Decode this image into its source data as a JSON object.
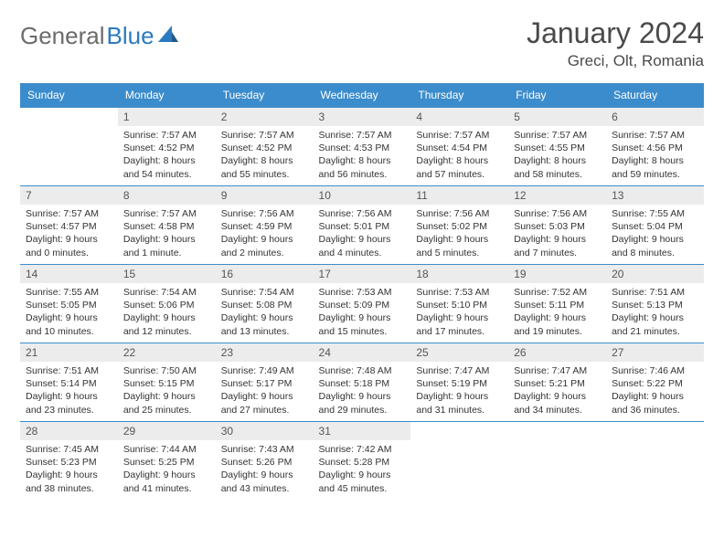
{
  "logo": {
    "text_gray": "General",
    "text_blue": "Blue"
  },
  "title": "January 2024",
  "location": "Greci, Olt, Romania",
  "colors": {
    "header_bg": "#3b8ccc",
    "header_text": "#ffffff",
    "daynum_bg": "#ececec",
    "row_border": "#3b8ccc",
    "body_text": "#333333",
    "logo_gray": "#6b6b6b",
    "logo_blue": "#2b7ac0"
  },
  "fonts": {
    "title_size_pt": 32,
    "location_size_pt": 17,
    "header_size_pt": 12,
    "daynum_size_pt": 12,
    "body_size_pt": 10.5
  },
  "days_of_week": [
    "Sunday",
    "Monday",
    "Tuesday",
    "Wednesday",
    "Thursday",
    "Friday",
    "Saturday"
  ],
  "first_weekday_offset": 1,
  "cells": [
    {
      "n": "1",
      "sunrise": "Sunrise: 7:57 AM",
      "sunset": "Sunset: 4:52 PM",
      "day1": "Daylight: 8 hours",
      "day2": "and 54 minutes."
    },
    {
      "n": "2",
      "sunrise": "Sunrise: 7:57 AM",
      "sunset": "Sunset: 4:52 PM",
      "day1": "Daylight: 8 hours",
      "day2": "and 55 minutes."
    },
    {
      "n": "3",
      "sunrise": "Sunrise: 7:57 AM",
      "sunset": "Sunset: 4:53 PM",
      "day1": "Daylight: 8 hours",
      "day2": "and 56 minutes."
    },
    {
      "n": "4",
      "sunrise": "Sunrise: 7:57 AM",
      "sunset": "Sunset: 4:54 PM",
      "day1": "Daylight: 8 hours",
      "day2": "and 57 minutes."
    },
    {
      "n": "5",
      "sunrise": "Sunrise: 7:57 AM",
      "sunset": "Sunset: 4:55 PM",
      "day1": "Daylight: 8 hours",
      "day2": "and 58 minutes."
    },
    {
      "n": "6",
      "sunrise": "Sunrise: 7:57 AM",
      "sunset": "Sunset: 4:56 PM",
      "day1": "Daylight: 8 hours",
      "day2": "and 59 minutes."
    },
    {
      "n": "7",
      "sunrise": "Sunrise: 7:57 AM",
      "sunset": "Sunset: 4:57 PM",
      "day1": "Daylight: 9 hours",
      "day2": "and 0 minutes."
    },
    {
      "n": "8",
      "sunrise": "Sunrise: 7:57 AM",
      "sunset": "Sunset: 4:58 PM",
      "day1": "Daylight: 9 hours",
      "day2": "and 1 minute."
    },
    {
      "n": "9",
      "sunrise": "Sunrise: 7:56 AM",
      "sunset": "Sunset: 4:59 PM",
      "day1": "Daylight: 9 hours",
      "day2": "and 2 minutes."
    },
    {
      "n": "10",
      "sunrise": "Sunrise: 7:56 AM",
      "sunset": "Sunset: 5:01 PM",
      "day1": "Daylight: 9 hours",
      "day2": "and 4 minutes."
    },
    {
      "n": "11",
      "sunrise": "Sunrise: 7:56 AM",
      "sunset": "Sunset: 5:02 PM",
      "day1": "Daylight: 9 hours",
      "day2": "and 5 minutes."
    },
    {
      "n": "12",
      "sunrise": "Sunrise: 7:56 AM",
      "sunset": "Sunset: 5:03 PM",
      "day1": "Daylight: 9 hours",
      "day2": "and 7 minutes."
    },
    {
      "n": "13",
      "sunrise": "Sunrise: 7:55 AM",
      "sunset": "Sunset: 5:04 PM",
      "day1": "Daylight: 9 hours",
      "day2": "and 8 minutes."
    },
    {
      "n": "14",
      "sunrise": "Sunrise: 7:55 AM",
      "sunset": "Sunset: 5:05 PM",
      "day1": "Daylight: 9 hours",
      "day2": "and 10 minutes."
    },
    {
      "n": "15",
      "sunrise": "Sunrise: 7:54 AM",
      "sunset": "Sunset: 5:06 PM",
      "day1": "Daylight: 9 hours",
      "day2": "and 12 minutes."
    },
    {
      "n": "16",
      "sunrise": "Sunrise: 7:54 AM",
      "sunset": "Sunset: 5:08 PM",
      "day1": "Daylight: 9 hours",
      "day2": "and 13 minutes."
    },
    {
      "n": "17",
      "sunrise": "Sunrise: 7:53 AM",
      "sunset": "Sunset: 5:09 PM",
      "day1": "Daylight: 9 hours",
      "day2": "and 15 minutes."
    },
    {
      "n": "18",
      "sunrise": "Sunrise: 7:53 AM",
      "sunset": "Sunset: 5:10 PM",
      "day1": "Daylight: 9 hours",
      "day2": "and 17 minutes."
    },
    {
      "n": "19",
      "sunrise": "Sunrise: 7:52 AM",
      "sunset": "Sunset: 5:11 PM",
      "day1": "Daylight: 9 hours",
      "day2": "and 19 minutes."
    },
    {
      "n": "20",
      "sunrise": "Sunrise: 7:51 AM",
      "sunset": "Sunset: 5:13 PM",
      "day1": "Daylight: 9 hours",
      "day2": "and 21 minutes."
    },
    {
      "n": "21",
      "sunrise": "Sunrise: 7:51 AM",
      "sunset": "Sunset: 5:14 PM",
      "day1": "Daylight: 9 hours",
      "day2": "and 23 minutes."
    },
    {
      "n": "22",
      "sunrise": "Sunrise: 7:50 AM",
      "sunset": "Sunset: 5:15 PM",
      "day1": "Daylight: 9 hours",
      "day2": "and 25 minutes."
    },
    {
      "n": "23",
      "sunrise": "Sunrise: 7:49 AM",
      "sunset": "Sunset: 5:17 PM",
      "day1": "Daylight: 9 hours",
      "day2": "and 27 minutes."
    },
    {
      "n": "24",
      "sunrise": "Sunrise: 7:48 AM",
      "sunset": "Sunset: 5:18 PM",
      "day1": "Daylight: 9 hours",
      "day2": "and 29 minutes."
    },
    {
      "n": "25",
      "sunrise": "Sunrise: 7:47 AM",
      "sunset": "Sunset: 5:19 PM",
      "day1": "Daylight: 9 hours",
      "day2": "and 31 minutes."
    },
    {
      "n": "26",
      "sunrise": "Sunrise: 7:47 AM",
      "sunset": "Sunset: 5:21 PM",
      "day1": "Daylight: 9 hours",
      "day2": "and 34 minutes."
    },
    {
      "n": "27",
      "sunrise": "Sunrise: 7:46 AM",
      "sunset": "Sunset: 5:22 PM",
      "day1": "Daylight: 9 hours",
      "day2": "and 36 minutes."
    },
    {
      "n": "28",
      "sunrise": "Sunrise: 7:45 AM",
      "sunset": "Sunset: 5:23 PM",
      "day1": "Daylight: 9 hours",
      "day2": "and 38 minutes."
    },
    {
      "n": "29",
      "sunrise": "Sunrise: 7:44 AM",
      "sunset": "Sunset: 5:25 PM",
      "day1": "Daylight: 9 hours",
      "day2": "and 41 minutes."
    },
    {
      "n": "30",
      "sunrise": "Sunrise: 7:43 AM",
      "sunset": "Sunset: 5:26 PM",
      "day1": "Daylight: 9 hours",
      "day2": "and 43 minutes."
    },
    {
      "n": "31",
      "sunrise": "Sunrise: 7:42 AM",
      "sunset": "Sunset: 5:28 PM",
      "day1": "Daylight: 9 hours",
      "day2": "and 45 minutes."
    }
  ]
}
